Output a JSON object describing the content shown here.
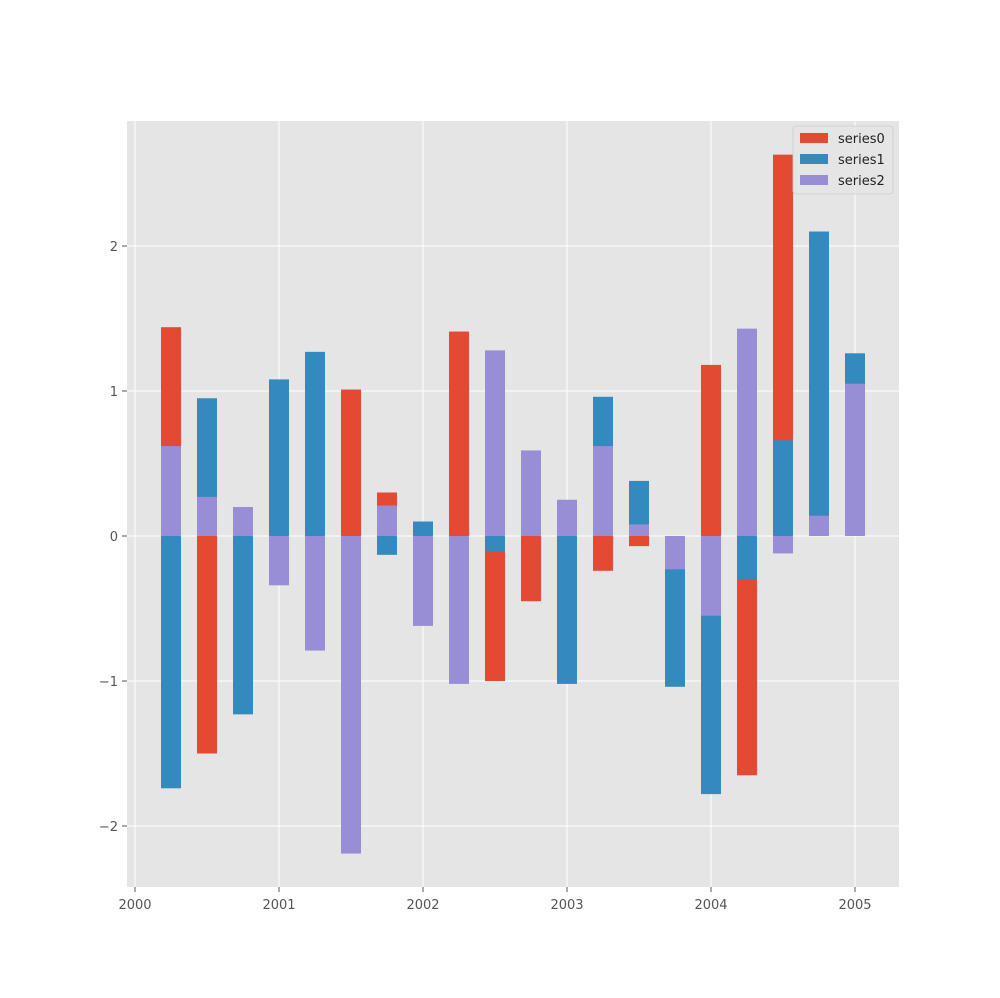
{
  "chart_data": {
    "type": "bar",
    "bar_mode": "overlapped_from_zero",
    "title": "",
    "xlabel": "",
    "ylabel": "",
    "xlim": [
      1999.95,
      2005.3
    ],
    "ylim": [
      -2.42,
      2.85
    ],
    "x_ticks": [
      2000,
      2001,
      2002,
      2003,
      2004,
      2005
    ],
    "x_tick_labels": [
      "2000",
      "2001",
      "2002",
      "2003",
      "2004",
      "2005"
    ],
    "y_ticks": [
      -2,
      -1,
      0,
      1,
      2
    ],
    "y_tick_labels": [
      "−2",
      "−1",
      "0",
      "1",
      "2"
    ],
    "grid": true,
    "legend_position": "upper right",
    "x": [
      "2000-04",
      "2000-07",
      "2000-10",
      "2001-01",
      "2001-04",
      "2001-07",
      "2001-10",
      "2002-01",
      "2002-04",
      "2002-07",
      "2002-10",
      "2003-01",
      "2003-04",
      "2003-07",
      "2003-10",
      "2004-01",
      "2004-04",
      "2004-07",
      "2004-10",
      "2005-01"
    ],
    "x_numeric": [
      2000.25,
      2000.5,
      2000.75,
      2001.0,
      2001.25,
      2001.5,
      2001.75,
      2002.0,
      2002.25,
      2002.5,
      2002.75,
      2003.0,
      2003.25,
      2003.5,
      2003.75,
      2004.0,
      2004.25,
      2004.5,
      2004.75,
      2005.0
    ],
    "series": [
      {
        "name": "series0",
        "color": "#E24A33",
        "values": [
          1.44,
          -1.5,
          0.0,
          0.0,
          0.0,
          1.01,
          0.3,
          0.0,
          1.41,
          -1.0,
          -0.45,
          0.0,
          -0.24,
          -0.07,
          0.0,
          1.18,
          -1.65,
          2.63,
          0.0,
          0.0
        ]
      },
      {
        "name": "series1",
        "color": "#348ABD",
        "values": [
          -1.74,
          0.95,
          -1.23,
          1.08,
          1.27,
          0.0,
          -0.13,
          0.1,
          0.0,
          -0.11,
          0.0,
          -1.02,
          0.96,
          0.38,
          -1.04,
          -1.78,
          -0.3,
          0.66,
          2.1,
          1.26
        ]
      },
      {
        "name": "series2",
        "color": "#988ED5",
        "values": [
          0.62,
          0.27,
          0.2,
          -0.34,
          -0.79,
          -2.19,
          0.21,
          -0.62,
          -1.02,
          1.28,
          0.59,
          0.25,
          0.62,
          0.08,
          -0.23,
          -0.55,
          1.43,
          -0.12,
          0.14,
          1.05
        ]
      }
    ]
  },
  "legend": {
    "items": [
      {
        "label": "series0",
        "color": "#E24A33"
      },
      {
        "label": "series1",
        "color": "#348ABD"
      },
      {
        "label": "series2",
        "color": "#988ED5"
      }
    ]
  },
  "style": {
    "plot_background": "#E5E5E5",
    "grid_color": "#FFFFFF",
    "tick_color": "#555555"
  }
}
